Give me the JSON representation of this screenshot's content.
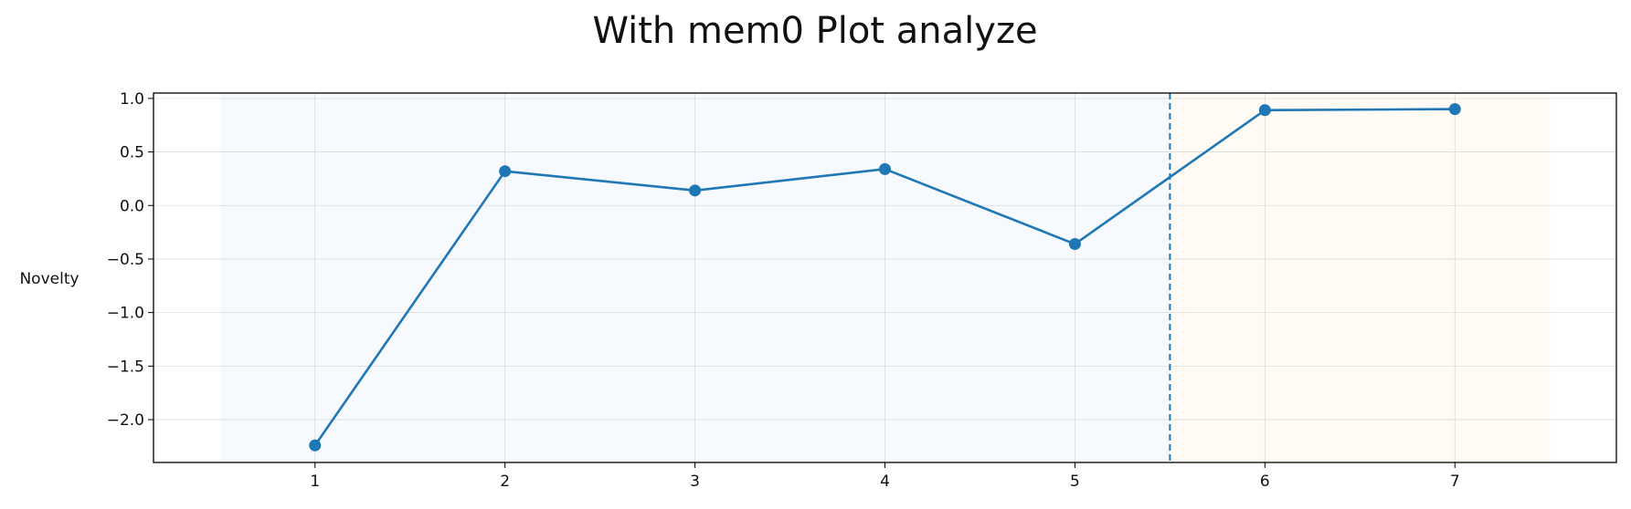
{
  "chart_data": {
    "type": "line",
    "title": "With mem0 Plot analyze",
    "xlabel": "",
    "ylabel": "Novelty",
    "x": [
      1,
      2,
      3,
      4,
      5,
      6,
      7
    ],
    "series": [
      {
        "values": [
          -2.24,
          0.32,
          0.14,
          0.34,
          -0.36,
          0.89,
          0.9
        ],
        "color": "#1f77b4"
      }
    ],
    "xlim": [
      0.15,
      7.85
    ],
    "ylim": [
      -2.4,
      1.05
    ],
    "xticks": [
      1,
      2,
      3,
      4,
      5,
      6,
      7
    ],
    "yticks": [
      1.0,
      0.5,
      0.0,
      -0.5,
      -1.0,
      -1.5,
      -2.0
    ],
    "ytick_labels": [
      "1.0",
      "0.5",
      "0.0",
      "−0.5",
      "−1.0",
      "−1.5",
      "−2.0"
    ],
    "regions": [
      {
        "from": 0.5,
        "to": 5.5,
        "color": "#f6f9fd"
      },
      {
        "from": 5.5,
        "to": 7.5,
        "color": "#fffaf4"
      }
    ],
    "vline": {
      "x": 5.5,
      "style": "dashed",
      "color": "#1f77b4"
    },
    "grid": true,
    "legend": "none"
  }
}
